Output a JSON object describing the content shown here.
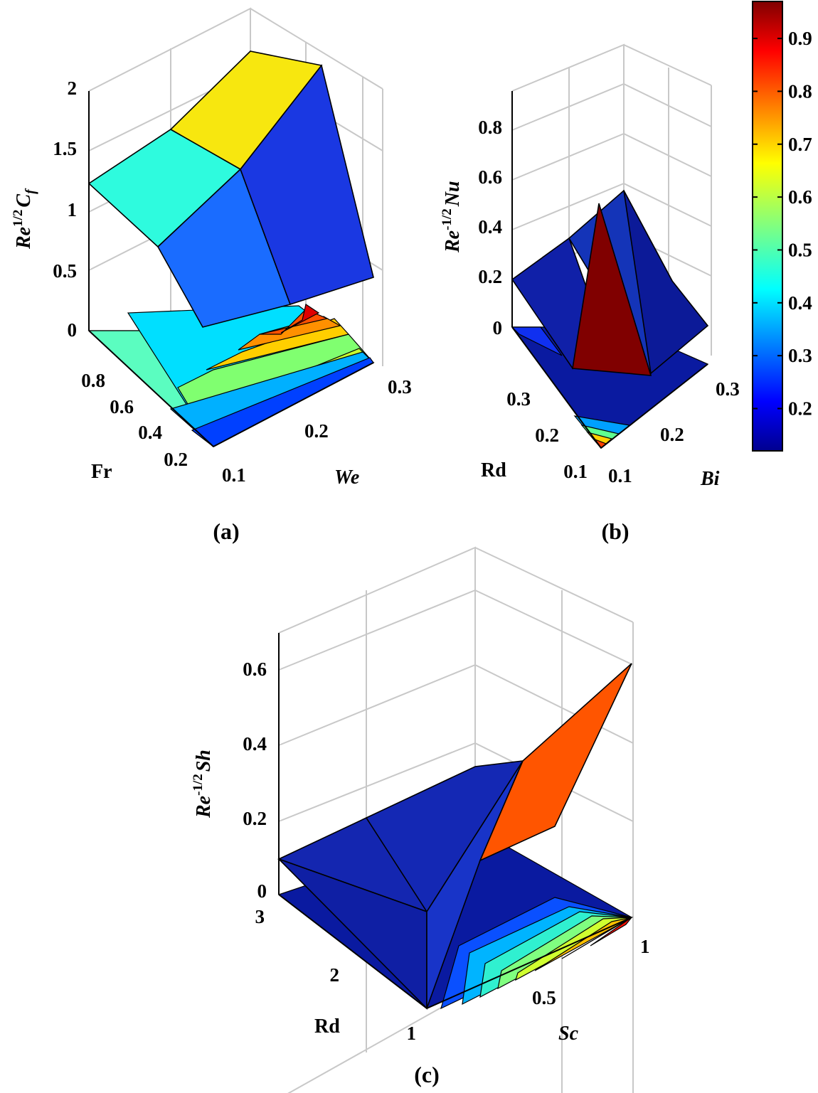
{
  "colors": {
    "edge": "#000000",
    "grid": "#c8c8c8",
    "jet": [
      "#00008f",
      "#0000ff",
      "#0070ff",
      "#00dfff",
      "#50ffaf",
      "#c0ff40",
      "#ffcf00",
      "#ff6000",
      "#ef0000",
      "#800000"
    ]
  },
  "colorbar": {
    "ticks": [
      "0.2",
      "0.3",
      "0.4",
      "0.5",
      "0.6",
      "0.7",
      "0.8",
      "0.9"
    ],
    "tick_values": [
      0.2,
      0.3,
      0.4,
      0.5,
      0.6,
      0.7,
      0.8,
      0.9
    ],
    "range": [
      0.12,
      0.97
    ]
  },
  "chart_data": [
    {
      "panel": "(a)",
      "type": "surface3d",
      "zlabel": "Re^{1/2}C_f",
      "zlabel_parts": [
        "Re",
        "1/2",
        "C",
        "f"
      ],
      "xlabel": "We",
      "ylabel": "Fr",
      "x_ticks": [
        "0.1",
        "0.2",
        "0.3"
      ],
      "y_ticks": [
        "0.2",
        "0.4",
        "0.6",
        "0.8"
      ],
      "z_ticks": [
        "0",
        "0.5",
        "1",
        "1.5",
        "2"
      ],
      "x": [
        0.1,
        0.2,
        0.3
      ],
      "y": [
        0.1,
        0.5,
        0.9
      ],
      "z": [
        [
          0.92,
          1.22,
          1.42
        ],
        [
          1.2,
          1.55,
          1.72
        ],
        [
          1.45,
          1.88,
          2.1
        ]
      ],
      "zlim": [
        0,
        2.1
      ],
      "contour_floor": true
    },
    {
      "panel": "(b)",
      "type": "surface3d",
      "zlabel": "Re^{-1/2}Nu",
      "zlabel_parts": [
        "Re",
        "-1/2",
        "Nu"
      ],
      "xlabel": "Bi",
      "ylabel": "Rd",
      "x_ticks": [
        "0.1",
        "0.2",
        "0.3"
      ],
      "y_ticks": [
        "0.1",
        "0.2",
        "0.3"
      ],
      "z_ticks": [
        "0",
        "0.2",
        "0.4",
        "0.6",
        "0.8"
      ],
      "x": [
        0.1,
        0.2,
        0.3
      ],
      "y": [
        0.1,
        0.2,
        0.3
      ],
      "z": [
        [
          0.97,
          0.16,
          0.15
        ],
        [
          0.17,
          0.2,
          0.19
        ],
        [
          0.16,
          0.21,
          0.22
        ]
      ],
      "zlim": [
        0,
        0.97
      ],
      "contour_floor": true
    },
    {
      "panel": "(c)",
      "type": "surface3d",
      "zlabel": "Re^{-1/2}Sh",
      "zlabel_parts": [
        "Re",
        "-1/2",
        "Sh"
      ],
      "xlabel": "Sc",
      "ylabel": "Rd",
      "x_ticks": [
        "0.5",
        "1"
      ],
      "y_ticks": [
        "1",
        "2",
        "3"
      ],
      "z_ticks": [
        "0",
        "0.2",
        "0.4",
        "0.6"
      ],
      "x": [
        0.1,
        0.5,
        1
      ],
      "y": [
        1,
        2,
        3
      ],
      "z": [
        [
          0.01,
          0.21,
          0.6
        ],
        [
          0.05,
          0.07,
          0.09
        ],
        [
          0.09,
          0.1,
          0.11
        ]
      ],
      "zlim": [
        0,
        0.65
      ],
      "contour_floor": true
    }
  ]
}
